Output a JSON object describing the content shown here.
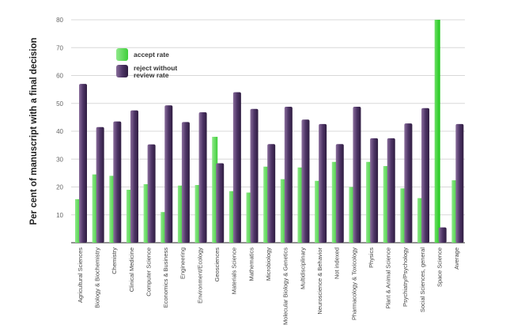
{
  "chart_data": {
    "type": "bar",
    "title": "",
    "xlabel": "",
    "ylabel": "Per cent of manuscript with a final decision",
    "ylim": [
      0,
      80
    ],
    "yticks": [
      10,
      20,
      30,
      40,
      50,
      60,
      70,
      80
    ],
    "grid": true,
    "legend_position": "top-left",
    "categories": [
      "Agricultural Sciences",
      "Biology & Biochemistry",
      "Chemistry",
      "Clinical Medicine",
      "Computer Science",
      "Economics & Business",
      "Engineering",
      "Environment/Ecology",
      "Geosciences",
      "Materials Science",
      "Mathematics",
      "Microbiology",
      "Molecular Biology & Genetics",
      "Multidisciplinary",
      "Neuroscience & Behavior",
      "Not indexed",
      "Pharmacology & Toxicology",
      "Physics",
      "Plant & Animal Science",
      "Psychiatry/Psychology",
      "Social Sciences, general",
      "Space Science",
      "Average"
    ],
    "series": [
      {
        "name": "accept rate",
        "color": "#4fd44a",
        "values": [
          15.6,
          24.5,
          24,
          19,
          21,
          11,
          20.5,
          20.7,
          38,
          18.5,
          18,
          27.3,
          22.8,
          27,
          22.2,
          29,
          20,
          29,
          27.5,
          19.5,
          16,
          80,
          22.4
        ]
      },
      {
        "name": "reject without review rate",
        "color": "#4e3566",
        "values": [
          57,
          41.5,
          43.5,
          47.5,
          35.3,
          49.3,
          43.3,
          46.8,
          28.5,
          54,
          48,
          35.4,
          48.8,
          44.2,
          42.6,
          35.4,
          48.8,
          37.5,
          37.5,
          42.8,
          48.3,
          5.5,
          42.6
        ]
      }
    ]
  }
}
